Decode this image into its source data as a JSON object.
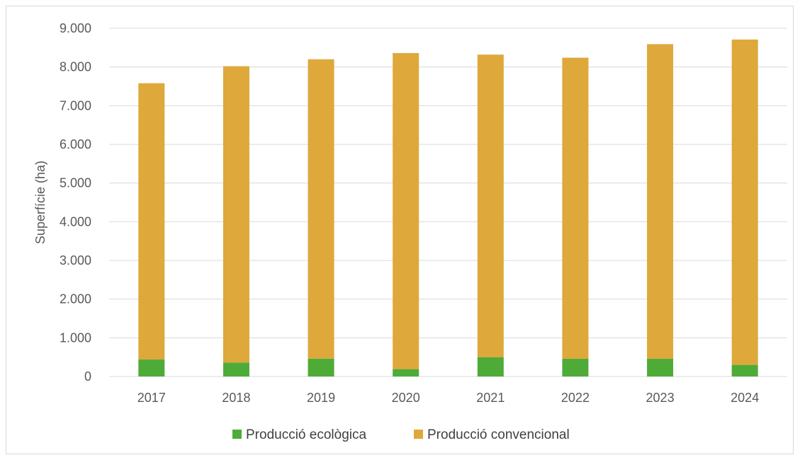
{
  "chart_data": {
    "type": "bar",
    "stacked": true,
    "categories": [
      "2017",
      "2018",
      "2019",
      "2020",
      "2021",
      "2022",
      "2023",
      "2024"
    ],
    "series": [
      {
        "name": "Producció ecològica",
        "values": [
          440,
          360,
          460,
          190,
          500,
          460,
          460,
          300
        ],
        "color": "#4eab38"
      },
      {
        "name": "Producció convencional",
        "values": [
          7140,
          7660,
          7740,
          8170,
          7820,
          7780,
          8130,
          8410
        ],
        "color": "#dea83a"
      }
    ],
    "ylabel": "Superfície (ha)",
    "ylim": [
      0,
      9000
    ],
    "yticks": [
      "0",
      "1.000",
      "2.000",
      "3.000",
      "4.000",
      "5.000",
      "6.000",
      "7.000",
      "8.000",
      "9.000"
    ],
    "ytick_values": [
      0,
      1000,
      2000,
      3000,
      4000,
      5000,
      6000,
      7000,
      8000,
      9000
    ],
    "grid": true,
    "legend_position": "bottom"
  }
}
